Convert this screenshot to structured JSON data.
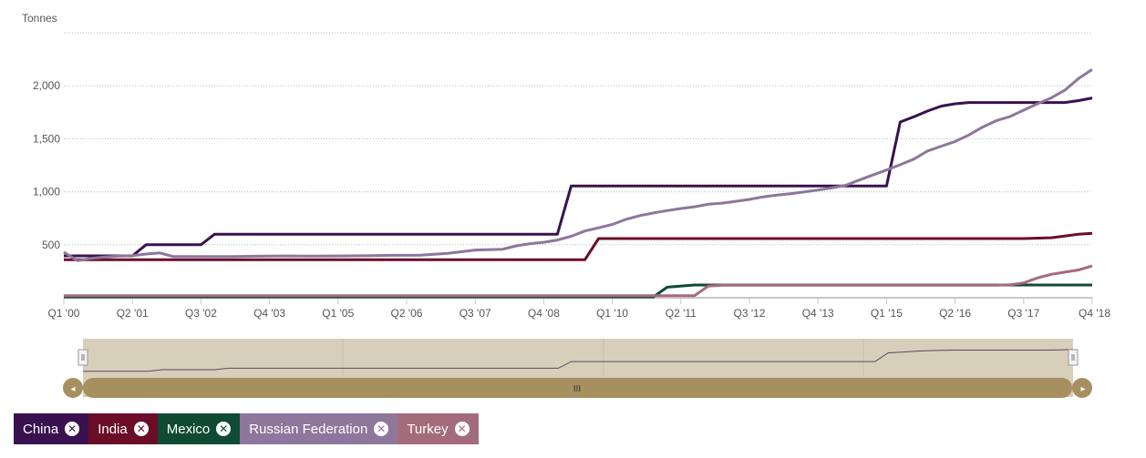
{
  "chart_data": {
    "type": "line",
    "ylabel": "Tonnes",
    "yticks": [
      "500",
      "1,000",
      "1,500",
      "2,000"
    ],
    "ylim": [
      0,
      2500
    ],
    "xlim": [
      0,
      75
    ],
    "x_tick_labels": [
      "Q1 '00",
      "Q2 '01",
      "Q3 '02",
      "Q4 '03",
      "Q1 '05",
      "Q2 '06",
      "Q3 '07",
      "Q4 '08",
      "Q1 '10",
      "Q2 '11",
      "Q3 '12",
      "Q4 '13",
      "Q1 '15",
      "Q2 '16",
      "Q3 '17",
      "Q4 '18"
    ],
    "x_ticks_index": [
      0,
      5,
      10,
      15,
      20,
      25,
      30,
      35,
      40,
      45,
      50,
      55,
      60,
      65,
      70,
      75
    ],
    "grid": "horizontal dotted",
    "legend": "bottom-left",
    "series": [
      {
        "name": "China",
        "color": "#3a1150",
        "points": [
          [
            0,
            395
          ],
          [
            5,
            395
          ],
          [
            6,
            500
          ],
          [
            10,
            500
          ],
          [
            11,
            600
          ],
          [
            36,
            600
          ],
          [
            37,
            1054
          ],
          [
            60,
            1054
          ],
          [
            61,
            1658
          ],
          [
            62,
            1708
          ],
          [
            63,
            1762
          ],
          [
            64,
            1808
          ],
          [
            65,
            1830
          ],
          [
            66,
            1842
          ],
          [
            72,
            1842
          ],
          [
            73,
            1842
          ],
          [
            74,
            1860
          ],
          [
            75,
            1885
          ]
        ]
      },
      {
        "name": "India",
        "color": "#6b0d27",
        "points": [
          [
            0,
            358
          ],
          [
            38,
            358
          ],
          [
            39,
            558
          ],
          [
            70,
            558
          ],
          [
            72,
            566
          ],
          [
            73,
            582
          ],
          [
            74,
            600
          ],
          [
            75,
            608
          ]
        ]
      },
      {
        "name": "Mexico",
        "color": "#0f4a35",
        "points": [
          [
            0,
            8
          ],
          [
            43,
            8
          ],
          [
            44,
            100
          ],
          [
            46,
            120
          ],
          [
            75,
            120
          ]
        ]
      },
      {
        "name": "Russian Federation",
        "color": "#8e769c",
        "points": [
          [
            0,
            430
          ],
          [
            1,
            350
          ],
          [
            2,
            372
          ],
          [
            3,
            385
          ],
          [
            4,
            393
          ],
          [
            5,
            398
          ],
          [
            6,
            412
          ],
          [
            7,
            423
          ],
          [
            8,
            388
          ],
          [
            9,
            388
          ],
          [
            10,
            388
          ],
          [
            11,
            388
          ],
          [
            12,
            388
          ],
          [
            14,
            392
          ],
          [
            16,
            394
          ],
          [
            18,
            393
          ],
          [
            20,
            394
          ],
          [
            22,
            396
          ],
          [
            24,
            400
          ],
          [
            26,
            402
          ],
          [
            28,
            418
          ],
          [
            30,
            450
          ],
          [
            32,
            458
          ],
          [
            33,
            490
          ],
          [
            34,
            510
          ],
          [
            35,
            523
          ],
          [
            36,
            545
          ],
          [
            37,
            580
          ],
          [
            38,
            630
          ],
          [
            39,
            660
          ],
          [
            40,
            692
          ],
          [
            41,
            740
          ],
          [
            42,
            775
          ],
          [
            43,
            800
          ],
          [
            44,
            822
          ],
          [
            45,
            842
          ],
          [
            46,
            858
          ],
          [
            47,
            882
          ],
          [
            48,
            893
          ],
          [
            49,
            910
          ],
          [
            50,
            928
          ],
          [
            51,
            952
          ],
          [
            52,
            968
          ],
          [
            53,
            982
          ],
          [
            54,
            998
          ],
          [
            55,
            1016
          ],
          [
            56,
            1036
          ],
          [
            57,
            1060
          ],
          [
            58,
            1110
          ],
          [
            59,
            1158
          ],
          [
            60,
            1205
          ],
          [
            61,
            1255
          ],
          [
            62,
            1308
          ],
          [
            63,
            1385
          ],
          [
            64,
            1430
          ],
          [
            65,
            1474
          ],
          [
            66,
            1535
          ],
          [
            67,
            1610
          ],
          [
            68,
            1670
          ],
          [
            69,
            1710
          ],
          [
            70,
            1770
          ],
          [
            71,
            1830
          ],
          [
            72,
            1885
          ],
          [
            73,
            1958
          ],
          [
            74,
            2068
          ],
          [
            75,
            2155
          ]
        ]
      },
      {
        "name": "Turkey",
        "color": "#a46b7d",
        "points": [
          [
            0,
            20
          ],
          [
            46,
            20
          ],
          [
            47,
            110
          ],
          [
            48,
            118
          ],
          [
            68,
            118
          ],
          [
            69,
            122
          ],
          [
            70,
            140
          ],
          [
            71,
            186
          ],
          [
            72,
            221
          ],
          [
            73,
            241
          ],
          [
            74,
            262
          ],
          [
            75,
            300
          ]
        ]
      }
    ]
  },
  "legend_items": [
    {
      "label": "China",
      "color": "#3a1150"
    },
    {
      "label": "India",
      "color": "#6b0d27"
    },
    {
      "label": "Mexico",
      "color": "#0f4a35"
    },
    {
      "label": "Russian Federation",
      "color": "#8e769c"
    },
    {
      "label": "Turkey",
      "color": "#a46b7d"
    }
  ],
  "navigator": {
    "background": "#d8cfbb",
    "scrollbar_color": "#a69060",
    "handle_glyph": "III",
    "left_arrow": "◂",
    "right_arrow": "▸"
  }
}
